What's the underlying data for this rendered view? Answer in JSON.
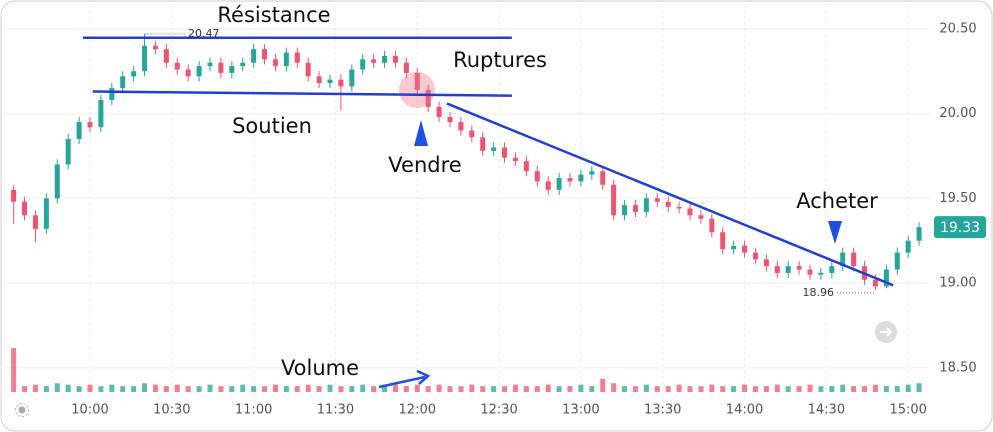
{
  "chart_data": {
    "type": "candlestick",
    "annotations": [
      "Résistance",
      "Ruptures",
      "Soutien",
      "Vendre",
      "Acheter",
      "Volume"
    ],
    "high_label": 20.47,
    "low_label": 18.96,
    "last_price": 19.33,
    "up_color": "#26a69a",
    "down_color": "#ef5370",
    "line_color": "#1f3fd6",
    "grid": true,
    "xlim": [
      567,
      908
    ],
    "xticks": [
      {
        "value": 600,
        "label": "10:00"
      },
      {
        "value": 630,
        "label": "10:30"
      },
      {
        "value": 660,
        "label": "11:00"
      },
      {
        "value": 690,
        "label": "11:30"
      },
      {
        "value": 720,
        "label": "12:00"
      },
      {
        "value": 750,
        "label": "12:30"
      },
      {
        "value": 780,
        "label": "13:00"
      },
      {
        "value": 810,
        "label": "13:30"
      },
      {
        "value": 840,
        "label": "14:00"
      },
      {
        "value": 870,
        "label": "14:30"
      },
      {
        "value": 900,
        "label": "15:00"
      }
    ],
    "ylim": [
      18.34,
      20.67
    ],
    "yticks": [
      {
        "value": 18.5,
        "label": "18.50"
      },
      {
        "value": 19,
        "label": "19.00"
      },
      {
        "value": 19.5,
        "label": "19.50"
      },
      {
        "value": 20,
        "label": "20.00"
      },
      {
        "value": 20.5,
        "label": "20.50"
      }
    ],
    "volume_lim": [
      0,
      30
    ],
    "lines": [
      {
        "x": [
          597.4,
          754.7
        ],
        "y": [
          20.447,
          20.447
        ]
      },
      {
        "x": [
          601,
          754.7
        ],
        "y": [
          20.13,
          20.106
        ]
      },
      {
        "x": [
          730.9,
          894.5
        ],
        "y": [
          20.059,
          18.987
        ]
      }
    ],
    "x": [
      572,
      576,
      580,
      584,
      588,
      592,
      596,
      600,
      604,
      608,
      612,
      616,
      620,
      624,
      628,
      632,
      636,
      640,
      644,
      648,
      652,
      656,
      660,
      664,
      668,
      672,
      676,
      680,
      684,
      688,
      692,
      696,
      700,
      704,
      708,
      712,
      716,
      720,
      724,
      728,
      732,
      736,
      740,
      744,
      748,
      752,
      756,
      760,
      764,
      768,
      772,
      776,
      780,
      784,
      788,
      792,
      796,
      800,
      804,
      808,
      812,
      816,
      820,
      824,
      828,
      832,
      836,
      840,
      844,
      848,
      852,
      856,
      860,
      864,
      868,
      872,
      876,
      880,
      884,
      888,
      892,
      896,
      900,
      904
    ],
    "open": [
      19.55,
      19.48,
      19.4,
      19.32,
      19.5,
      19.7,
      19.85,
      19.95,
      19.92,
      20.08,
      20.15,
      20.22,
      20.25,
      20.4,
      20.38,
      20.3,
      20.26,
      20.22,
      20.28,
      20.3,
      20.24,
      20.28,
      20.3,
      20.38,
      20.32,
      20.28,
      20.36,
      20.3,
      20.22,
      20.18,
      20.2,
      20.16,
      20.26,
      20.32,
      20.3,
      20.34,
      20.3,
      20.24,
      20.14,
      20.04,
      19.98,
      19.95,
      19.9,
      19.86,
      19.78,
      19.8,
      19.74,
      19.72,
      19.66,
      19.6,
      19.55,
      19.62,
      19.6,
      19.64,
      19.66,
      19.58,
      19.4,
      19.46,
      19.42,
      19.5,
      19.48,
      19.45,
      19.44,
      19.4,
      19.38,
      19.3,
      19.2,
      19.22,
      19.18,
      19.14,
      19.1,
      19.06,
      19.1,
      19.08,
      19.05,
      19.06,
      19.1,
      19.18,
      19.1,
      19.02,
      18.98,
      19.08,
      19.18,
      19.25
    ],
    "high": [
      19.58,
      19.51,
      19.43,
      19.53,
      19.73,
      19.88,
      19.98,
      19.98,
      20.11,
      20.18,
      20.25,
      20.28,
      20.47,
      20.43,
      20.41,
      20.33,
      20.29,
      20.31,
      20.33,
      20.33,
      20.31,
      20.33,
      20.41,
      20.41,
      20.35,
      20.39,
      20.39,
      20.33,
      20.25,
      20.23,
      20.23,
      20.29,
      20.35,
      20.35,
      20.37,
      20.37,
      20.33,
      20.27,
      20.17,
      20.07,
      20.01,
      19.98,
      19.93,
      19.89,
      19.83,
      19.83,
      19.77,
      19.75,
      19.69,
      19.63,
      19.65,
      19.65,
      19.67,
      19.69,
      19.69,
      19.61,
      19.49,
      19.49,
      19.53,
      19.53,
      19.51,
      19.48,
      19.47,
      19.43,
      19.41,
      19.33,
      19.25,
      19.25,
      19.21,
      19.17,
      19.13,
      19.13,
      19.13,
      19.11,
      19.09,
      19.13,
      19.21,
      19.21,
      19.13,
      19.05,
      19.11,
      19.21,
      19.28,
      19.36
    ],
    "low": [
      19.35,
      19.37,
      19.24,
      19.29,
      19.47,
      19.67,
      19.82,
      19.89,
      19.89,
      20.05,
      20.12,
      20.19,
      20.22,
      20.35,
      20.27,
      20.23,
      20.19,
      20.19,
      20.25,
      20.21,
      20.21,
      20.25,
      20.27,
      20.29,
      20.25,
      20.25,
      20.27,
      20.19,
      20.15,
      20.15,
      20.02,
      20.13,
      20.23,
      20.27,
      20.27,
      20.27,
      20.21,
      20.11,
      20.01,
      19.95,
      19.92,
      19.87,
      19.83,
      19.75,
      19.75,
      19.71,
      19.69,
      19.63,
      19.57,
      19.52,
      19.52,
      19.57,
      19.57,
      19.61,
      19.55,
      19.37,
      19.37,
      19.39,
      19.39,
      19.45,
      19.42,
      19.41,
      19.37,
      19.35,
      19.27,
      19.17,
      19.17,
      19.15,
      19.11,
      19.07,
      19.03,
      19.03,
      19.05,
      19.02,
      19.02,
      19.03,
      19.07,
      19.07,
      18.99,
      18.96,
      18.97,
      19.05,
      19.15,
      19.22
    ],
    "close": [
      19.48,
      19.4,
      19.32,
      19.5,
      19.7,
      19.85,
      19.95,
      19.92,
      20.08,
      20.15,
      20.22,
      20.25,
      20.4,
      20.38,
      20.3,
      20.26,
      20.22,
      20.28,
      20.3,
      20.24,
      20.28,
      20.3,
      20.38,
      20.32,
      20.28,
      20.36,
      20.3,
      20.22,
      20.18,
      20.2,
      20.16,
      20.26,
      20.32,
      20.3,
      20.34,
      20.3,
      20.24,
      20.14,
      20.04,
      19.98,
      19.95,
      19.9,
      19.86,
      19.78,
      19.8,
      19.74,
      19.72,
      19.66,
      19.6,
      19.55,
      19.62,
      19.6,
      19.64,
      19.66,
      19.58,
      19.4,
      19.46,
      19.42,
      19.5,
      19.48,
      19.45,
      19.44,
      19.4,
      19.38,
      19.3,
      19.2,
      19.22,
      19.18,
      19.14,
      19.1,
      19.06,
      19.1,
      19.08,
      19.05,
      19.06,
      19.1,
      19.18,
      19.1,
      19.02,
      18.98,
      19.08,
      19.18,
      19.25,
      19.33
    ],
    "volume": [
      30,
      4,
      5,
      4,
      6,
      5,
      4,
      5,
      4,
      5,
      4,
      4,
      6,
      5,
      4,
      5,
      4,
      4,
      5,
      4,
      4,
      5,
      4,
      4,
      5,
      4,
      4,
      5,
      4,
      5,
      4,
      4,
      5,
      4,
      4,
      5,
      4,
      5,
      4,
      5,
      4,
      4,
      5,
      4,
      4,
      4,
      5,
      4,
      4,
      5,
      4,
      4,
      5,
      4,
      9,
      6,
      4,
      4,
      5,
      4,
      4,
      5,
      4,
      4,
      5,
      4,
      4,
      5,
      4,
      4,
      5,
      4,
      4,
      5,
      4,
      4,
      5,
      4,
      4,
      5,
      4,
      4,
      5,
      6
    ]
  }
}
